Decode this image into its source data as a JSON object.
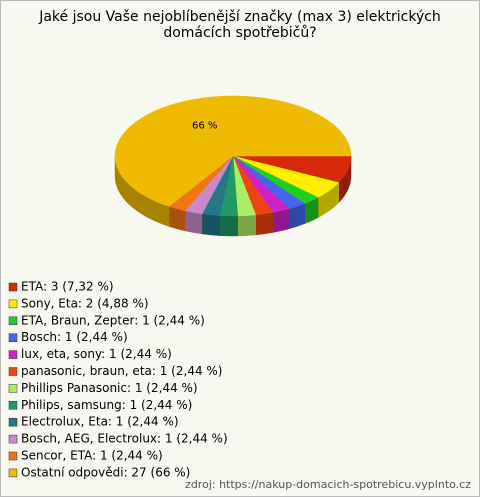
{
  "chart_data": {
    "type": "pie3d",
    "title": "Jaké jsou Vaše nejoblíbenější značky (max 3) elektrických domácích spotřebičů?",
    "categories": [
      "ETA: 3 (7,32 %)",
      "Sony, Eta: 2 (4,88 %)",
      "ETA, Braun, Zepter: 1 (2,44 %)",
      "Bosch: 1 (2,44 %)",
      "lux, eta, sony: 1 (2,44 %)",
      "panasonic, braun, eta: 1 (2,44 %)",
      "Phillips Panasonic: 1 (2,44 %)",
      "Philips, samsung: 1 (2,44 %)",
      "Electrolux, Eta: 1 (2,44 %)",
      "Bosch, AEG, Electrolux: 1 (2,44 %)",
      "Sencor, ETA: 1 (2,44 %)",
      "Ostatní odpovědi: 27 (66 %)"
    ],
    "values": [
      7.32,
      4.88,
      2.44,
      2.44,
      2.44,
      2.44,
      2.44,
      2.44,
      2.44,
      2.44,
      2.44,
      66
    ],
    "value_labels": [
      null,
      null,
      null,
      null,
      null,
      null,
      null,
      null,
      null,
      null,
      null,
      "66 %"
    ],
    "colors": [
      "#d42a0a",
      "#ffee00",
      "#22cc22",
      "#4466ee",
      "#cc22cc",
      "#ee4411",
      "#aaee66",
      "#229966",
      "#227788",
      "#cc88cc",
      "#ee7711",
      "#eebb00"
    ],
    "source": "zdroj: https://nakup-domacich-spotrebicu.vyplnto.cz"
  }
}
